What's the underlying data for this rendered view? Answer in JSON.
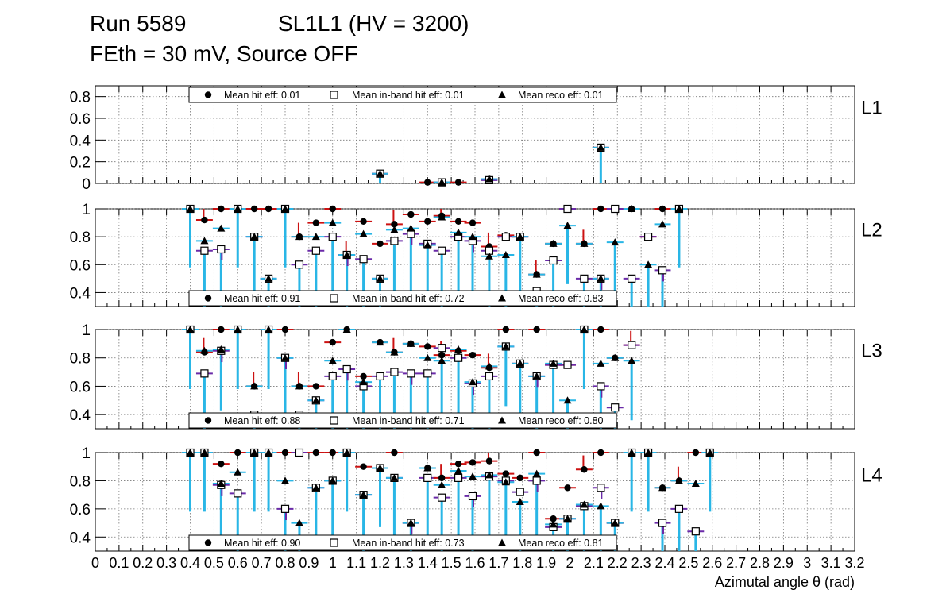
{
  "header": {
    "run": "Run 5589",
    "chamber": "SL1L1 (HV = 3200)",
    "conditions": "FEth = 30 mV, Source OFF"
  },
  "colors": {
    "hit": "#000000",
    "error_bar": "#29b6e6",
    "red_bar": "#cc1111",
    "purple_bar": "#6a2aa8",
    "grid": "#777777"
  },
  "chart_data": {
    "type": "scatter",
    "xlabel": "Azimutal angle θ (rad)",
    "xlim": [
      0,
      3.2
    ],
    "x_tick_labels": [
      "0",
      "0.1",
      "0.2",
      "0.3",
      "0.4",
      "0.5",
      "0.6",
      "0.7",
      "0.8",
      "0.9",
      "1",
      "1.1",
      "1.2",
      "1.3",
      "1.4",
      "1.5",
      "1.6",
      "1.7",
      "1.8",
      "1.9",
      "2",
      "2.1",
      "2.2",
      "2.3",
      "2.4",
      "2.5",
      "2.6",
      "2.7",
      "2.8",
      "2.9",
      "3",
      "3.1",
      "3.2"
    ],
    "x_bins": [
      0.4,
      0.46,
      0.53,
      0.6,
      0.67,
      0.73,
      0.8,
      0.86,
      0.93,
      1.0,
      1.06,
      1.13,
      1.2,
      1.26,
      1.33,
      1.4,
      1.46,
      1.53,
      1.59,
      1.66,
      1.73,
      1.79,
      1.86,
      1.93,
      1.99,
      2.06,
      2.13,
      2.19,
      2.26,
      2.33,
      2.39,
      2.46,
      2.53,
      2.59,
      2.66
    ],
    "panels": [
      {
        "label": "L1",
        "ylim": [
          0,
          0.9
        ],
        "yticks": [
          "0",
          "0.2",
          "0.4",
          "0.6",
          "0.8"
        ],
        "legend_position": "top",
        "legend": [
          "Mean hit  eff: 0.01",
          "Mean in-band hit eff: 0.01",
          "Mean reco eff: 0.01"
        ],
        "series": [
          {
            "name": "Mean hit eff",
            "marker": "circle",
            "values": [
              null,
              null,
              null,
              null,
              null,
              null,
              null,
              null,
              null,
              null,
              null,
              null,
              0.09,
              null,
              null,
              0.01,
              0.01,
              0.01,
              null,
              0.04,
              null,
              null,
              null,
              null,
              null,
              null,
              0.33,
              null,
              null,
              null,
              null,
              null,
              null,
              null,
              null
            ]
          },
          {
            "name": "Mean in-band hit eff",
            "marker": "square",
            "values": [
              null,
              null,
              null,
              null,
              null,
              null,
              null,
              null,
              null,
              null,
              null,
              null,
              0.09,
              null,
              null,
              null,
              0.01,
              null,
              null,
              0.03,
              null,
              null,
              null,
              null,
              null,
              null,
              0.33,
              null,
              null,
              null,
              null,
              null,
              null,
              null,
              null
            ]
          },
          {
            "name": "Mean reco eff",
            "marker": "triangle",
            "values": [
              null,
              null,
              null,
              null,
              null,
              null,
              null,
              null,
              null,
              null,
              null,
              null,
              0.09,
              null,
              null,
              null,
              0.01,
              null,
              null,
              0.04,
              null,
              null,
              null,
              null,
              null,
              null,
              0.33,
              null,
              null,
              null,
              null,
              null,
              null,
              null,
              null
            ]
          }
        ]
      },
      {
        "label": "L2",
        "ylim": [
          0.3,
          1.0
        ],
        "yticks": [
          "0.4",
          "0.6",
          "0.8",
          "1"
        ],
        "legend_position": "bottom",
        "legend": [
          "Mean hit  eff: 0.91",
          "Mean in-band hit eff: 0.72",
          "Mean reco eff: 0.83"
        ],
        "series": [
          {
            "name": "Mean hit eff",
            "marker": "circle",
            "values": [
              1,
              0.92,
              1,
              1,
              1,
              1,
              1,
              0.8,
              0.9,
              1,
              0.67,
              0.91,
              0.75,
              0.89,
              0.96,
              0.91,
              0.95,
              0.91,
              0.9,
              0.73,
              0.81,
              0.8,
              0.53,
              0.75,
              1,
              0.75,
              1,
              1,
              1,
              0.8,
              1,
              1,
              null,
              null,
              null
            ]
          },
          {
            "name": "Mean in-band hit eff",
            "marker": "square",
            "values": [
              1,
              0.7,
              0.71,
              1,
              0.8,
              0.5,
              1,
              0.6,
              0.7,
              0.8,
              0.67,
              0.64,
              0.5,
              0.77,
              0.82,
              0.75,
              0.7,
              0.8,
              0.77,
              0.7,
              0.8,
              0.8,
              0.41,
              0.63,
              1,
              0.5,
              0.5,
              1,
              0.5,
              0.8,
              0.56,
              1,
              null,
              null,
              null
            ]
          },
          {
            "name": "Mean reco eff",
            "marker": "triangle",
            "values": [
              1,
              0.77,
              0.86,
              1,
              0.8,
              0.5,
              1,
              0.8,
              0.8,
              0.9,
              0.67,
              0.82,
              0.5,
              0.85,
              0.86,
              0.74,
              0.94,
              0.83,
              0.8,
              0.66,
              0.67,
              0.8,
              0.53,
              0.75,
              0.88,
              0.75,
              0.5,
              0.76,
              1,
              0.6,
              0.89,
              1,
              null,
              null,
              null
            ]
          }
        ]
      },
      {
        "label": "L3",
        "ylim": [
          0.3,
          1.0
        ],
        "yticks": [
          "0.4",
          "0.6",
          "0.8",
          "1"
        ],
        "legend_position": "bottom",
        "legend": [
          "Mean hit  eff: 0.88",
          "Mean in-band hit eff: 0.71",
          "Mean reco eff: 0.80"
        ],
        "series": [
          {
            "name": "Mean hit eff",
            "marker": "circle",
            "values": [
              1,
              0.84,
              1,
              1,
              0.6,
              1,
              1,
              0.6,
              0.6,
              0.91,
              1,
              0.67,
              0.91,
              0.84,
              0.9,
              0.88,
              0.82,
              0.85,
              0.82,
              0.73,
              1,
              0.76,
              1,
              0.75,
              0.75,
              1,
              1,
              0.8,
              0.89,
              null,
              null,
              null,
              null,
              null,
              null
            ]
          },
          {
            "name": "Mean in-band hit eff",
            "marker": "square",
            "values": [
              1,
              0.69,
              0.85,
              1,
              0.4,
              1,
              0.8,
              0.4,
              0.5,
              0.67,
              0.72,
              0.6,
              0.67,
              0.7,
              0.69,
              0.69,
              0.87,
              0.8,
              0.62,
              0.67,
              0.88,
              0.76,
              0.67,
              0.75,
              0.75,
              1,
              0.6,
              0.45,
              0.89,
              null,
              null,
              null,
              null,
              null,
              null
            ]
          },
          {
            "name": "Mean reco eff",
            "marker": "triangle",
            "values": [
              1,
              0.85,
              0.86,
              1,
              0.6,
              1,
              0.8,
              0.6,
              0.5,
              0.78,
              1,
              0.63,
              0.91,
              0.84,
              0.9,
              0.8,
              0.78,
              0.86,
              0.63,
              0.74,
              0.88,
              0.76,
              0.67,
              0.76,
              0.5,
              1,
              0.76,
              0.8,
              0.78,
              null,
              null,
              null,
              null,
              null,
              null
            ]
          }
        ]
      },
      {
        "label": "L4",
        "ylim": [
          0.3,
          1.0
        ],
        "yticks": [
          "0.4",
          "0.6",
          "0.8",
          "1"
        ],
        "legend_position": "bottom",
        "legend": [
          "Mean hit  eff: 0.90",
          "Mean in-band hit eff: 0.73",
          "Mean reco eff: 0.81"
        ],
        "series": [
          {
            "name": "Mean hit eff",
            "marker": "circle",
            "values": [
              1,
              1,
              0.92,
              1,
              1,
              1,
              1,
              1,
              1,
              1,
              1,
              0.9,
              0.89,
              1,
              0.5,
              0.89,
              0.82,
              0.92,
              0.93,
              0.94,
              0.85,
              0.82,
              1,
              0.53,
              0.75,
              0.88,
              1,
              0.5,
              1,
              1,
              0.75,
              0.8,
              1,
              1,
              null
            ]
          },
          {
            "name": "Mean in-band hit eff",
            "marker": "square",
            "values": [
              1,
              1,
              0.77,
              0.71,
              1,
              1,
              0.6,
              1,
              0.75,
              0.8,
              1,
              0.7,
              0.89,
              0.82,
              0.5,
              0.82,
              0.68,
              0.82,
              0.69,
              0.83,
              0.8,
              0.72,
              0.8,
              0.47,
              0.53,
              0.62,
              0.75,
              0.5,
              1,
              1,
              0.5,
              0.6,
              0.44,
              1,
              null
            ]
          },
          {
            "name": "Mean reco eff",
            "marker": "triangle",
            "values": [
              1,
              1,
              0.78,
              0.86,
              1,
              1,
              0.8,
              0.5,
              0.75,
              0.8,
              1,
              0.7,
              0.89,
              0.82,
              0.5,
              0.89,
              0.77,
              0.87,
              0.83,
              0.84,
              0.79,
              0.65,
              0.85,
              0.49,
              0.53,
              0.63,
              0.62,
              0.5,
              1,
              1,
              0.75,
              0.8,
              0.78,
              1,
              null
            ]
          }
        ]
      }
    ]
  }
}
